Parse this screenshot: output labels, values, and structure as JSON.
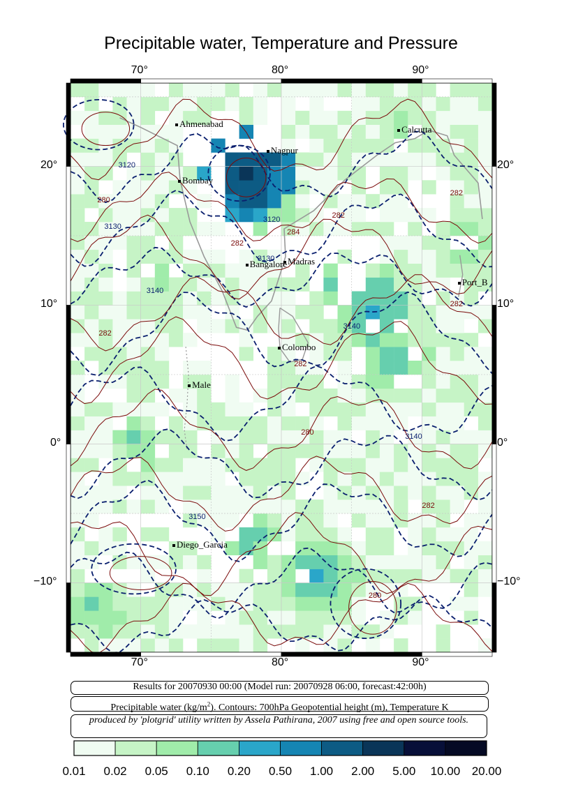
{
  "title": "Precipitable water, Temperature and Pressure",
  "axes": {
    "top_lon": [
      "70°",
      "80°",
      "90°"
    ],
    "bottom_lon": [
      "70°",
      "80°",
      "90°"
    ],
    "left_lat": [
      "20°",
      "10°",
      "0°",
      "−10°"
    ],
    "right_lat": [
      "20°",
      "10°",
      "0°",
      "−10°"
    ],
    "lon_range": [
      65,
      95
    ],
    "lat_range": [
      -15,
      26
    ]
  },
  "cities": [
    {
      "name": "Ahmenabad",
      "lon": 72.6,
      "lat": 23.0
    },
    {
      "name": "Nagpur",
      "lon": 79.1,
      "lat": 21.1
    },
    {
      "name": "Calcutta",
      "lon": 88.4,
      "lat": 22.6
    },
    {
      "name": "Bombay",
      "lon": 72.8,
      "lat": 18.9
    },
    {
      "name": "Bangalore",
      "lon": 77.6,
      "lat": 12.9
    },
    {
      "name": "Madras",
      "lon": 80.3,
      "lat": 13.1
    },
    {
      "name": "Port_B",
      "lon": 92.7,
      "lat": 11.6
    },
    {
      "name": "Colombo",
      "lon": 79.9,
      "lat": 6.9
    },
    {
      "name": "Male",
      "lon": 73.5,
      "lat": 4.2
    },
    {
      "name": "Diego_Garcia",
      "lon": 72.4,
      "lat": -7.3
    }
  ],
  "contour_labels": [
    {
      "text": "3120",
      "lon": 69.0,
      "lat": 20.0,
      "color": "#0a1f6e"
    },
    {
      "text": "280",
      "lon": 67.5,
      "lat": 17.5,
      "color": "#7a0a0a"
    },
    {
      "text": "3130",
      "lon": 68.0,
      "lat": 15.6,
      "color": "#0a1f6e"
    },
    {
      "text": "3120",
      "lon": 79.3,
      "lat": 16.1,
      "color": "#0a1f6e"
    },
    {
      "text": "284",
      "lon": 81.0,
      "lat": 15.2,
      "color": "#7a0a0a"
    },
    {
      "text": "282",
      "lon": 77.0,
      "lat": 14.4,
      "color": "#7a0a0a"
    },
    {
      "text": "3130",
      "lon": 78.9,
      "lat": 13.3,
      "color": "#0a1f6e"
    },
    {
      "text": "282",
      "lon": 84.2,
      "lat": 16.4,
      "color": "#7a0a0a"
    },
    {
      "text": "282",
      "lon": 92.6,
      "lat": 18.0,
      "color": "#7a0a0a"
    },
    {
      "text": "3140",
      "lon": 71.0,
      "lat": 11.0,
      "color": "#0a1f6e"
    },
    {
      "text": "282",
      "lon": 67.6,
      "lat": 7.9,
      "color": "#7a0a0a"
    },
    {
      "text": "3140",
      "lon": 85.0,
      "lat": 8.4,
      "color": "#0a1f6e"
    },
    {
      "text": "282",
      "lon": 92.6,
      "lat": 10.0,
      "color": "#7a0a0a"
    },
    {
      "text": "282",
      "lon": 81.5,
      "lat": 5.7,
      "color": "#7a0a0a"
    },
    {
      "text": "280",
      "lon": 82.0,
      "lat": 0.8,
      "color": "#7a0a0a"
    },
    {
      "text": "3140",
      "lon": 89.4,
      "lat": 0.5,
      "color": "#0a1f6e"
    },
    {
      "text": "282",
      "lon": 90.6,
      "lat": -4.5,
      "color": "#7a0a0a"
    },
    {
      "text": "3150",
      "lon": 74.0,
      "lat": -5.3,
      "color": "#0a1f6e"
    },
    {
      "text": "280",
      "lon": 86.8,
      "lat": -11.0,
      "color": "#7a0a0a"
    }
  ],
  "info": {
    "line1": "Results for 20070930 00:00 (Model run: 20070928 06:00, forecast:42:00h)",
    "line2_prefix": "Precipitable water (kg/m",
    "line2_sup": "2",
    "line2_suffix": ").  Contours: 700hPa Geopotential height (m), Temperature K",
    "line3": "produced by 'plotgrid' utility written by Assela Pathirana, 2007 using free and open source tools."
  },
  "colorbar": {
    "labels": [
      "0.01",
      "0.02",
      "0.05",
      "0.10",
      "0.20",
      "0.50",
      "1.00",
      "2.00",
      "5.00",
      "10.00",
      "20.00"
    ],
    "colors": [
      "#f0fcf2",
      "#c6f4c6",
      "#a0ecaa",
      "#66cfae",
      "#2aa6c9",
      "#1585b3",
      "#0d5b84",
      "#0a3558",
      "#070f38",
      "#050a24"
    ]
  },
  "colors": {
    "height_contour": "#0a1f6e",
    "temp_contour": "#7a0a0a",
    "coast": "#999999",
    "grid": "#c8c8c8"
  }
}
